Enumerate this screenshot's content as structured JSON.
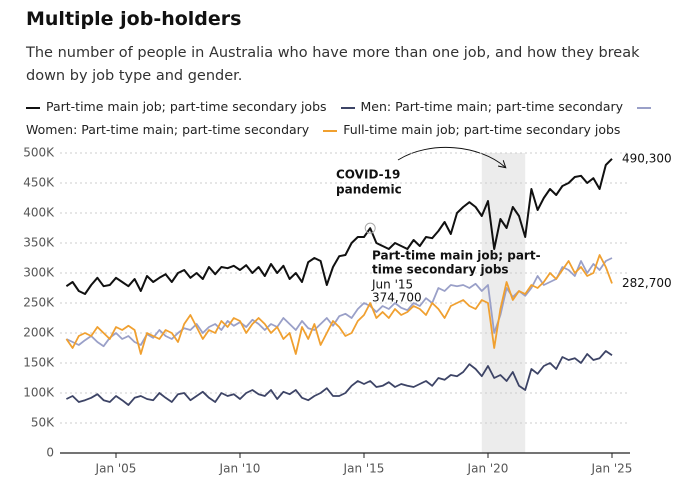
{
  "chart_data": {
    "type": "line",
    "title": "Multiple job-holders",
    "subtitle": "The number of people in Australia who have more than one job, and how they break down by job type and gender.",
    "categories": [
      null,
      null,
      null,
      null,
      null,
      null,
      null,
      null,
      "Jan '05",
      null,
      null,
      null,
      null,
      null,
      null,
      null,
      null,
      null,
      null,
      null,
      null,
      null,
      null,
      null,
      null,
      null,
      null,
      null,
      "Jan '10",
      null,
      null,
      null,
      null,
      null,
      null,
      null,
      null,
      null,
      null,
      null,
      null,
      null,
      null,
      null,
      null,
      null,
      null,
      null,
      "Jan '15",
      null,
      null,
      null,
      null,
      null,
      null,
      null,
      null,
      null,
      null,
      null,
      null,
      null,
      null,
      null,
      null,
      null,
      null,
      null,
      "Jan '20",
      null,
      null,
      null,
      null,
      null,
      null,
      null,
      null,
      null,
      null,
      null,
      null,
      null,
      null,
      null,
      null,
      null,
      null,
      null,
      "Jan '25"
    ],
    "series": [
      {
        "name": "Part-time main job; part-time secondary jobs",
        "color": "#111111",
        "values": [
          278,
          285,
          270,
          265,
          280,
          292,
          278,
          280,
          292,
          285,
          278,
          290,
          270,
          295,
          285,
          292,
          298,
          285,
          300,
          305,
          292,
          300,
          290,
          310,
          298,
          310,
          308,
          312,
          305,
          313,
          300,
          310,
          295,
          315,
          300,
          312,
          290,
          300,
          285,
          318,
          325,
          320,
          280,
          310,
          328,
          330,
          350,
          360,
          360,
          374.7,
          350,
          345,
          340,
          350,
          345,
          340,
          355,
          345,
          360,
          358,
          370,
          385,
          365,
          400,
          410,
          418,
          410,
          395,
          420,
          340,
          390,
          375,
          410,
          395,
          360,
          440,
          405,
          425,
          440,
          430,
          445,
          450,
          460,
          462,
          450,
          458,
          440,
          480,
          490.3
        ]
      },
      {
        "name": "Men: Part-time main; part-time secondary",
        "color": "#3d4466",
        "values": [
          90,
          95,
          85,
          88,
          92,
          98,
          88,
          85,
          95,
          88,
          80,
          92,
          95,
          90,
          88,
          100,
          92,
          85,
          98,
          100,
          88,
          95,
          102,
          92,
          85,
          100,
          95,
          98,
          90,
          100,
          105,
          98,
          95,
          105,
          90,
          102,
          98,
          105,
          92,
          88,
          95,
          100,
          108,
          95,
          95,
          100,
          112,
          120,
          115,
          120,
          110,
          112,
          118,
          110,
          115,
          112,
          110,
          115,
          120,
          112,
          125,
          122,
          130,
          128,
          135,
          148,
          140,
          128,
          145,
          125,
          130,
          120,
          135,
          112,
          105,
          140,
          132,
          145,
          150,
          140,
          160,
          155,
          158,
          150,
          165,
          155,
          158,
          170,
          163
        ]
      },
      {
        "name": "Women: Part-time main; part-time secondary",
        "color": "#9aa0c8",
        "values": [
          190,
          185,
          180,
          188,
          195,
          185,
          178,
          192,
          200,
          190,
          195,
          185,
          180,
          198,
          192,
          205,
          195,
          190,
          200,
          208,
          205,
          215,
          200,
          210,
          215,
          205,
          220,
          212,
          218,
          210,
          222,
          215,
          205,
          215,
          210,
          225,
          215,
          205,
          220,
          208,
          205,
          215,
          225,
          212,
          228,
          232,
          225,
          240,
          250,
          245,
          235,
          245,
          240,
          250,
          242,
          238,
          250,
          245,
          258,
          250,
          275,
          270,
          280,
          278,
          280,
          275,
          282,
          270,
          280,
          200,
          230,
          275,
          260,
          270,
          262,
          275,
          295,
          280,
          285,
          290,
          310,
          305,
          295,
          320,
          300,
          315,
          305,
          320,
          325
        ]
      },
      {
        "name": "Full-time main job; part-time secondary jobs",
        "color": "#f0a030",
        "values": [
          190,
          175,
          195,
          200,
          195,
          210,
          200,
          190,
          210,
          205,
          212,
          205,
          165,
          200,
          195,
          190,
          205,
          200,
          185,
          215,
          230,
          210,
          190,
          205,
          200,
          220,
          210,
          225,
          220,
          200,
          215,
          225,
          215,
          200,
          210,
          190,
          200,
          165,
          210,
          190,
          215,
          180,
          200,
          220,
          210,
          195,
          200,
          220,
          230,
          250,
          225,
          235,
          225,
          240,
          230,
          235,
          245,
          240,
          230,
          250,
          240,
          225,
          245,
          250,
          255,
          245,
          240,
          255,
          250,
          175,
          240,
          285,
          255,
          270,
          265,
          280,
          275,
          285,
          300,
          290,
          305,
          320,
          300,
          310,
          295,
          300,
          330,
          310,
          282.7
        ]
      }
    ],
    "end_labels": [
      {
        "series": 0,
        "label": "490,300"
      },
      {
        "series": 3,
        "label": "282,700"
      }
    ],
    "ylim": [
      0,
      500
    ],
    "yticks": [
      {
        "value": 0,
        "label": "0"
      },
      {
        "value": 50,
        "label": "50K"
      },
      {
        "value": 100,
        "label": "100K"
      },
      {
        "value": 150,
        "label": "150K"
      },
      {
        "value": 200,
        "label": "200K"
      },
      {
        "value": 250,
        "label": "250K"
      },
      {
        "value": 300,
        "label": "300K"
      },
      {
        "value": 350,
        "label": "350K"
      },
      {
        "value": 400,
        "label": "400K"
      },
      {
        "value": 450,
        "label": "450K"
      },
      {
        "value": 500,
        "label": "500K"
      }
    ],
    "grid": true,
    "shaded_span": [
      67,
      74
    ],
    "annotations": [
      {
        "lines": [
          "COVID-19",
          "pandemic"
        ]
      },
      {
        "lines": [
          "Part-time main job; part-",
          "time secondary jobs"
        ],
        "date": "Jun '15",
        "value_label": "374,700",
        "point": 49
      }
    ]
  }
}
